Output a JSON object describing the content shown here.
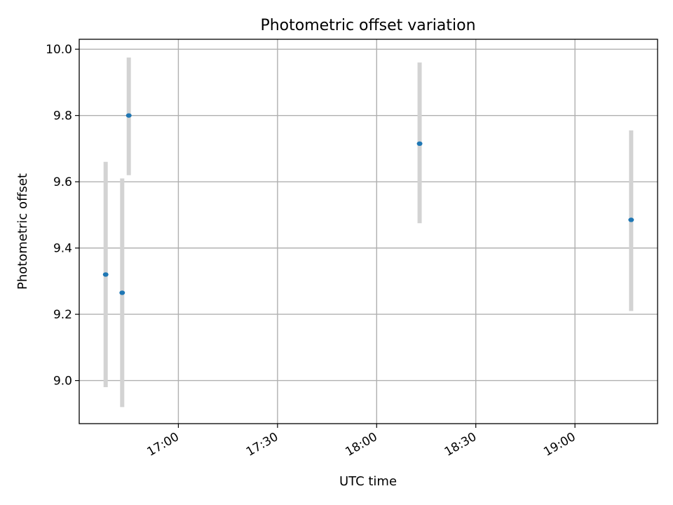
{
  "chart_data": {
    "type": "scatter",
    "title": "Photometric offset variation",
    "xlabel": "UTC time",
    "ylabel": "Photometric offset",
    "x_is_time": true,
    "xlim": [
      "16:30",
      "19:25"
    ],
    "ylim": [
      8.87,
      10.03
    ],
    "x_ticks": [
      "17:00",
      "17:30",
      "18:00",
      "18:30",
      "19:00"
    ],
    "y_ticks": [
      9.0,
      9.2,
      9.4,
      9.6,
      9.8,
      10.0
    ],
    "y_tick_labels": [
      "9.0",
      "9.2",
      "9.4",
      "9.6",
      "9.8",
      "10.0"
    ],
    "grid": true,
    "marker_color": "#1f77b4",
    "errorbar_color": "#d3d3d3",
    "points": [
      {
        "x": "16:38",
        "y": 9.32,
        "yerr_low": 8.98,
        "yerr_high": 9.66
      },
      {
        "x": "16:43",
        "y": 9.265,
        "yerr_low": 8.92,
        "yerr_high": 9.61
      },
      {
        "x": "16:45",
        "y": 9.8,
        "yerr_low": 9.62,
        "yerr_high": 9.975
      },
      {
        "x": "18:13",
        "y": 9.715,
        "yerr_low": 9.475,
        "yerr_high": 9.96
      },
      {
        "x": "19:17",
        "y": 9.485,
        "yerr_low": 9.21,
        "yerr_high": 9.755
      }
    ]
  }
}
